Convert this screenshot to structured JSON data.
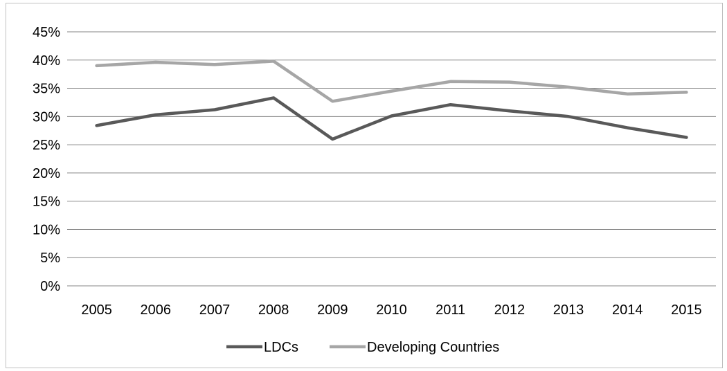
{
  "chart_data": {
    "type": "line",
    "title": "",
    "xlabel": "",
    "ylabel": "",
    "categories": [
      "2005",
      "2006",
      "2007",
      "2008",
      "2009",
      "2010",
      "2011",
      "2012",
      "2013",
      "2014",
      "2015"
    ],
    "y_ticks": [
      "0%",
      "5%",
      "10%",
      "15%",
      "20%",
      "25%",
      "30%",
      "35%",
      "40%",
      "45%"
    ],
    "ylim": [
      0,
      45
    ],
    "y_unit": "%",
    "grid": true,
    "legend_position": "bottom",
    "series": [
      {
        "name": "LDCs",
        "color": "#595959",
        "values": [
          28.4,
          30.3,
          31.2,
          33.3,
          26.0,
          30.1,
          32.1,
          31.0,
          30.0,
          28.0,
          26.3
        ]
      },
      {
        "name": "Developing Countries",
        "color": "#a6a6a6",
        "values": [
          39.0,
          39.6,
          39.2,
          39.8,
          32.7,
          34.5,
          36.2,
          36.1,
          35.2,
          34.0,
          34.3
        ]
      }
    ]
  }
}
